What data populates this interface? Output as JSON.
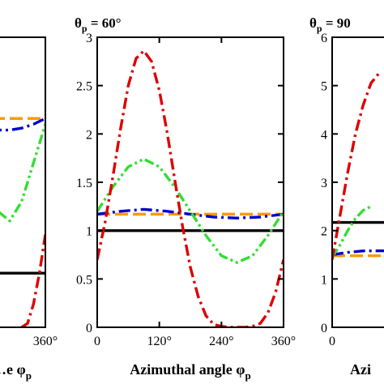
{
  "chart_data": [
    {
      "type": "line",
      "title": "",
      "xlabel": "…e φ",
      "xlabel_sub": "p",
      "xlim": [
        0,
        360
      ],
      "ylim": [
        0.5,
        2.0
      ],
      "xticks": [
        360
      ],
      "xtick_labels": [
        "360°"
      ],
      "yticks": [],
      "ytick_labels": [],
      "grid": false,
      "series": [
        {
          "color": "#000000",
          "dash": "solid",
          "x": [
            0,
            360
          ],
          "y": [
            0.78,
            0.78
          ]
        },
        {
          "color": "#ff9900",
          "dash": "long-dash",
          "x": [
            0,
            90,
            180,
            270,
            360
          ],
          "y": [
            1.58,
            1.58,
            1.58,
            1.58,
            1.58
          ]
        },
        {
          "color": "#0000cc",
          "dash": "dash-dot",
          "x": [
            0,
            180,
            270,
            300,
            330,
            360
          ],
          "y": [
            1.52,
            1.52,
            1.52,
            1.53,
            1.55,
            1.58
          ]
        },
        {
          "color": "#33dd33",
          "dash": "dash-dot-dot",
          "x": [
            180,
            210,
            240,
            270,
            300,
            330,
            360
          ],
          "y": [
            1.45,
            1.25,
            1.1,
            1.05,
            1.15,
            1.35,
            1.55
          ]
        },
        {
          "color": "#dd0000",
          "dash": "dash-dot",
          "x": [
            300,
            315,
            330,
            345,
            360
          ],
          "y": [
            0.5,
            0.52,
            0.62,
            0.78,
            0.98
          ]
        }
      ]
    },
    {
      "type": "line",
      "title": "θ",
      "title_sub": "p",
      "title_suffix": " = 60°",
      "xlabel": "Azimuthal angle φ",
      "xlabel_sub": "p",
      "xlim": [
        0,
        360
      ],
      "ylim": [
        0,
        3
      ],
      "xticks": [
        0,
        120,
        240,
        360
      ],
      "xtick_labels": [
        "0",
        "120°",
        "240°",
        "360°"
      ],
      "yticks": [
        0,
        0.5,
        1,
        1.5,
        2,
        2.5,
        3
      ],
      "ytick_labels": [
        "0",
        "0.5",
        "1",
        "1.5",
        "2",
        "2.5",
        "3"
      ],
      "grid": false,
      "series": [
        {
          "color": "#000000",
          "dash": "solid",
          "x": [
            0,
            360
          ],
          "y": [
            1.0,
            1.0
          ]
        },
        {
          "color": "#ff9900",
          "dash": "long-dash",
          "x": [
            0,
            90,
            180,
            270,
            360
          ],
          "y": [
            1.17,
            1.17,
            1.17,
            1.17,
            1.17
          ]
        },
        {
          "color": "#0000cc",
          "dash": "dash-dot",
          "x": [
            0,
            45,
            90,
            135,
            180,
            225,
            270,
            315,
            360
          ],
          "y": [
            1.17,
            1.2,
            1.22,
            1.2,
            1.17,
            1.14,
            1.13,
            1.14,
            1.17
          ]
        },
        {
          "color": "#33dd33",
          "dash": "dash-dot-dot",
          "x": [
            0,
            30,
            60,
            90,
            120,
            150,
            180,
            210,
            240,
            270,
            300,
            330,
            360
          ],
          "y": [
            1.2,
            1.45,
            1.66,
            1.74,
            1.66,
            1.45,
            1.2,
            0.95,
            0.74,
            0.67,
            0.74,
            0.95,
            1.2
          ]
        },
        {
          "color": "#dd0000",
          "dash": "dash-dot",
          "x": [
            0,
            15,
            30,
            45,
            60,
            75,
            90,
            105,
            120,
            135,
            150,
            165,
            180,
            195,
            210,
            225,
            240,
            255,
            270,
            285,
            300,
            315,
            330,
            345,
            360
          ],
          "y": [
            0.7,
            1.08,
            1.55,
            2.05,
            2.5,
            2.78,
            2.86,
            2.75,
            2.45,
            2.02,
            1.52,
            1.04,
            0.62,
            0.32,
            0.12,
            0.03,
            0.01,
            0.0,
            0.0,
            0.0,
            0.01,
            0.04,
            0.15,
            0.37,
            0.7
          ]
        }
      ]
    },
    {
      "type": "line",
      "title": "θ",
      "title_sub": "p",
      "title_suffix": " = 90",
      "xlabel": "Azi",
      "xlabel_sub": "",
      "xlim": [
        0,
        360
      ],
      "ylim": [
        0,
        6
      ],
      "xticks": [
        0
      ],
      "xtick_labels": [
        "0"
      ],
      "yticks": [
        0,
        1,
        2,
        3,
        4,
        5,
        6
      ],
      "ytick_labels": [
        "0",
        "1",
        "2",
        "3",
        "4",
        "5",
        "6"
      ],
      "grid": false,
      "series": [
        {
          "color": "#000000",
          "dash": "solid",
          "x": [
            0,
            360
          ],
          "y": [
            2.17,
            2.17
          ]
        },
        {
          "color": "#ff9900",
          "dash": "long-dash",
          "x": [
            0,
            360
          ],
          "y": [
            1.48,
            1.48
          ]
        },
        {
          "color": "#0000cc",
          "dash": "dash-dot",
          "x": [
            0,
            30,
            60,
            360
          ],
          "y": [
            1.5,
            1.55,
            1.58,
            1.6
          ]
        },
        {
          "color": "#33dd33",
          "dash": "dash-dot-dot",
          "x": [
            0,
            15,
            30,
            45,
            60,
            75
          ],
          "y": [
            1.45,
            1.7,
            2.0,
            2.25,
            2.42,
            2.5
          ]
        },
        {
          "color": "#dd0000",
          "dash": "dash-dot",
          "x": [
            0,
            15,
            30,
            45,
            60,
            75,
            90
          ],
          "y": [
            1.4,
            2.3,
            3.2,
            4.0,
            4.6,
            5.05,
            5.25
          ]
        }
      ]
    }
  ]
}
